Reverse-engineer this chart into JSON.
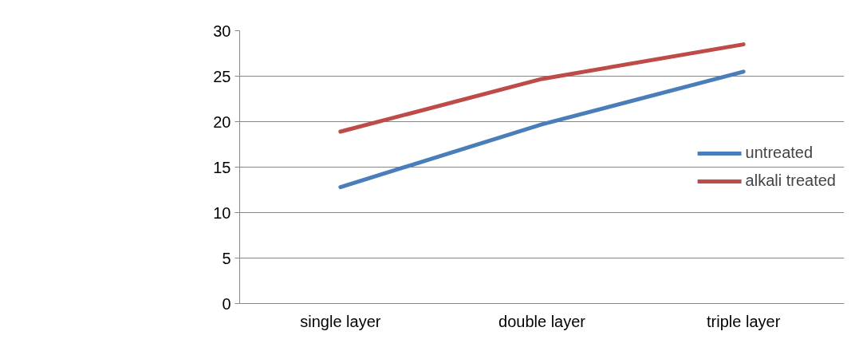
{
  "chart_data": {
    "type": "line",
    "categories": [
      "single layer",
      "double layer",
      "triple layer"
    ],
    "series": [
      {
        "name": "untreated",
        "color": "#4a7ebb",
        "values": [
          12.8,
          19.7,
          25.5
        ]
      },
      {
        "name": "alkali treated",
        "color": "#be4b48",
        "values": [
          18.9,
          24.7,
          28.5
        ]
      }
    ],
    "ylim": [
      0,
      30
    ],
    "yticks": [
      0,
      5,
      10,
      15,
      20,
      25,
      30
    ],
    "grid": "y",
    "legend": "right",
    "marker": "none",
    "line_style": "solid"
  }
}
